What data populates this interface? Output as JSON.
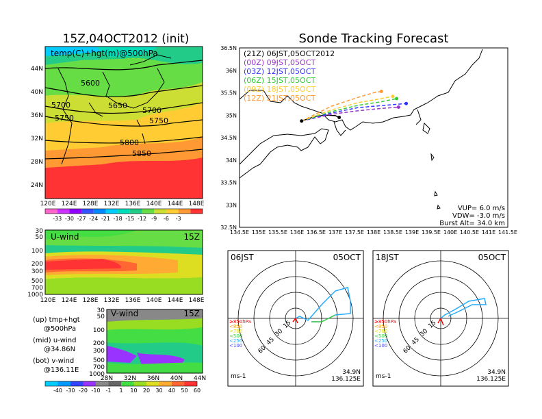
{
  "left": {
    "title": "15Z,04OCT2012 (init)",
    "map_label": "temp(C)+hgt(m)@500hPa",
    "lat_ticks": [
      "44N",
      "40N",
      "36N",
      "32N",
      "28N",
      "24N"
    ],
    "lon_ticks": [
      "120E",
      "124E",
      "128E",
      "132E",
      "136E",
      "140E",
      "144E",
      "148E"
    ],
    "contour_labels": [
      "5600",
      "5650",
      "5700",
      "5700",
      "5750",
      "5750",
      "5800",
      "5850"
    ],
    "temp_colorbar": [
      "-33",
      "-30",
      "-27",
      "-24",
      "-21",
      "-18",
      "-15",
      "-12",
      "-9",
      "-6",
      "-3"
    ],
    "uwind": {
      "label": "U-wind",
      "time": "15Z",
      "p_ticks": [
        "30",
        "50",
        "100",
        "200",
        "300",
        "500",
        "700",
        "1000"
      ]
    },
    "vwind": {
      "label": "V-wind",
      "time": "15Z",
      "p_ticks": [
        "30",
        "50",
        "100",
        "200",
        "300",
        "500",
        "700",
        "1000"
      ],
      "lat_ticks": [
        "28N",
        "32N",
        "36N",
        "40N",
        "44N"
      ]
    },
    "wind_colorbar": [
      "-40",
      "-30",
      "-20",
      "-10",
      "-1",
      "1",
      "10",
      "20",
      "30",
      "40",
      "50",
      "60"
    ],
    "legend": {
      "up_a": "(up) tmp+hgt",
      "up_b": "@500hPa",
      "mid_a": "(mid) u-wind",
      "mid_b": "@34.86N",
      "bot_a": "(bot) v-wind",
      "bot_b": "@136.11E"
    },
    "colors": {
      "temp": [
        "#f6c",
        "#c3f",
        "#9200ff",
        "#35f",
        "#08f",
        "#0cf",
        "#0db",
        "#2c8",
        "#6d4",
        "#cd3",
        "#fc3",
        "#f93",
        "#f33"
      ],
      "wind": [
        "#0cf",
        "#09f",
        "#34f",
        "#93f",
        "#888",
        "#666",
        "#4d4",
        "#9d2",
        "#dd2",
        "#fa3",
        "#f63",
        "#f33"
      ]
    }
  },
  "right": {
    "title": "Sonde Tracking Forecast",
    "lat_ticks": [
      "36.5N",
      "36N",
      "35.5N",
      "35N",
      "34.5N",
      "34N",
      "33.5N",
      "33N",
      "32.5N"
    ],
    "lon_ticks": [
      "134.5E",
      "135E",
      "135.5E",
      "136E",
      "136.5E",
      "137E",
      "137.5E",
      "138E",
      "138.5E",
      "139E",
      "139.5E",
      "140E",
      "140.5E",
      "141E",
      "141.5E"
    ],
    "tracks": [
      {
        "label": "(21Z)  06JST,05OCT2012",
        "color": "#000000"
      },
      {
        "label": "(00Z)  09JST,05OCT",
        "color": "#9933cc"
      },
      {
        "label": "(03Z)  12JST,05OCT",
        "color": "#3333ff"
      },
      {
        "label": "(06Z)  15JST,05OCT",
        "color": "#33cc33"
      },
      {
        "label": "(09Z)  18JST,05OCT",
        "color": "#ffcc33"
      },
      {
        "label": "(12Z)  21JST,05OCT",
        "color": "#ff9933"
      }
    ],
    "params": {
      "vup": "VUP=  6.0  m/s",
      "vdw": "VDW=  -3.0  m/s",
      "burst": "Burst Alt=  34.0  km"
    }
  },
  "hodo1": {
    "time": "06JST",
    "date": "05OCT",
    "lat": "34.9N",
    "lon": "136.125E",
    "unit": "ms-1",
    "rings": [
      "15",
      "30",
      "45",
      "60"
    ],
    "press": [
      {
        "t": "≥850hPa",
        "c": "#ff0000"
      },
      {
        "t": "<850",
        "c": "#ff9900"
      },
      {
        "t": "<700",
        "c": "#dddd00"
      },
      {
        "t": "<500",
        "c": "#44cc44"
      },
      {
        "t": "<250",
        "c": "#22aaff"
      },
      {
        "t": "<100",
        "c": "#4444ff"
      }
    ]
  },
  "hodo2": {
    "time": "18JST",
    "date": "05OCT",
    "lat": "34.9N",
    "lon": "136.125E",
    "unit": "ms-1",
    "rings": [
      "15",
      "30",
      "45",
      "60"
    ],
    "press": [
      {
        "t": "≥850hPa",
        "c": "#ff0000"
      },
      {
        "t": "<850",
        "c": "#ff9900"
      },
      {
        "t": "<700",
        "c": "#dddd00"
      },
      {
        "t": "<500",
        "c": "#44cc44"
      },
      {
        "t": "<250",
        "c": "#22aaff"
      },
      {
        "t": "<100",
        "c": "#4444ff"
      }
    ]
  },
  "chart_data": {
    "type": "line",
    "title": "Sonde Tracking Forecast",
    "xlabel": "",
    "ylabel": "",
    "xlim": [
      134.5,
      141.5
    ],
    "ylim": [
      32.5,
      36.5
    ],
    "launch": [
      136.12,
      34.87
    ],
    "series": [
      {
        "name": "(21Z)  06JST,05OCT2012",
        "color": "#000000",
        "x": [
          136.12,
          136.5,
          136.8,
          137.0,
          137.1
        ],
        "y": [
          34.87,
          34.98,
          35.0,
          34.99,
          34.95
        ]
      },
      {
        "name": "(00Z)  09JST,05OCT",
        "color": "#9933cc",
        "x": [
          136.12,
          136.9,
          137.6,
          138.2,
          138.65
        ],
        "y": [
          34.87,
          35.02,
          35.1,
          35.15,
          35.18
        ]
      },
      {
        "name": "(03Z)  12JST,05OCT",
        "color": "#3333ff",
        "x": [
          136.12,
          136.9,
          137.6,
          138.3,
          138.85
        ],
        "y": [
          34.87,
          35.05,
          35.17,
          35.22,
          35.26
        ]
      },
      {
        "name": "(06Z)  15JST,05OCT",
        "color": "#33cc33",
        "x": [
          136.12,
          136.9,
          137.6,
          138.2,
          138.6
        ],
        "y": [
          34.87,
          35.08,
          35.22,
          35.3,
          35.37
        ]
      },
      {
        "name": "(09Z)  18JST,05OCT",
        "color": "#ffcc33",
        "x": [
          136.12,
          136.9,
          137.6,
          138.2,
          138.5
        ],
        "y": [
          34.87,
          35.12,
          35.28,
          35.37,
          35.42
        ]
      },
      {
        "name": "(12Z)  21JST,05OCT",
        "color": "#ff9933",
        "x": [
          136.12,
          136.9,
          137.6,
          138.0,
          138.2
        ],
        "y": [
          34.87,
          35.2,
          35.4,
          35.5,
          35.53
        ]
      }
    ]
  }
}
